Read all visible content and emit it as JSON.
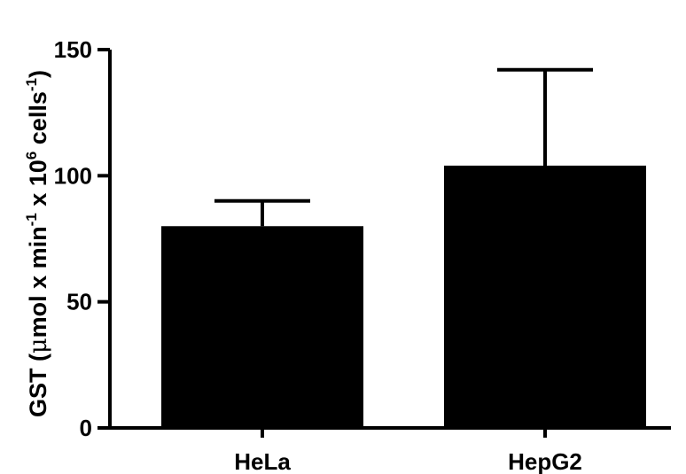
{
  "chart_data": {
    "type": "bar",
    "categories": [
      "HeLa",
      "HepG2"
    ],
    "values": [
      80,
      104
    ],
    "error_upper": [
      90,
      142
    ],
    "ylabel": {
      "prefix": "GST (",
      "mu": "μ",
      "mol": "mol x min",
      "exp1": "-1",
      "mid": " x 10",
      "exp2": "6",
      "cells": " cells",
      "exp3": "-1",
      "close": ")"
    },
    "ylim": [
      0,
      150
    ],
    "yticks": [
      "0",
      "50",
      "100",
      "150"
    ],
    "grid": false,
    "legend": "none",
    "bar_color": "#000000"
  }
}
